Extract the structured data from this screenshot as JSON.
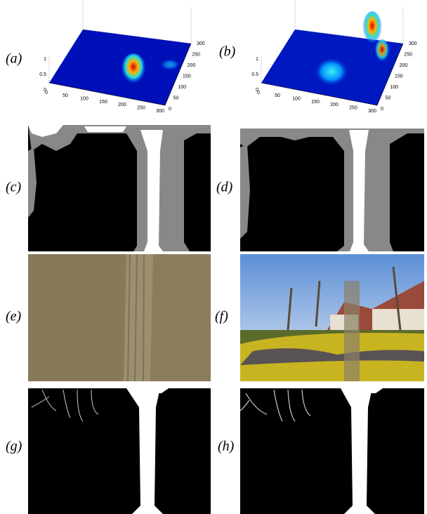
{
  "panels": [
    {
      "label": "(a)",
      "z_ticks": [
        "0",
        "0.5",
        "1"
      ],
      "x_ticks": [
        "0",
        "50",
        "100",
        "150",
        "200",
        "250",
        "300"
      ],
      "y_ticks": [
        "0",
        "50",
        "100",
        "150",
        "200",
        "250",
        "300"
      ]
    },
    {
      "label": "(b)",
      "z_ticks": [
        "0",
        "0.5",
        "1"
      ],
      "x_ticks": [
        "0",
        "50",
        "100",
        "150",
        "200",
        "250",
        "300"
      ],
      "y_ticks": [
        "0",
        "50",
        "100",
        "150",
        "200",
        "250",
        "300"
      ]
    },
    {
      "label": "(c)"
    },
    {
      "label": "(d)"
    },
    {
      "label": "(e)"
    },
    {
      "label": "(f)"
    },
    {
      "label": "(g)"
    },
    {
      "label": "(h)"
    }
  ]
}
